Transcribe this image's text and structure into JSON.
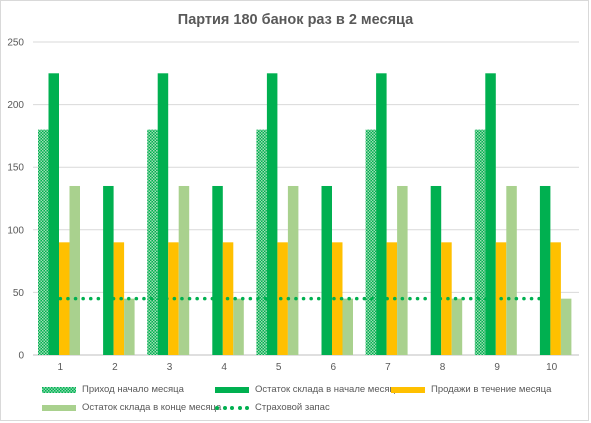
{
  "chart_data": {
    "type": "bar",
    "title": "Партия 180 банок раз в 2 месяца",
    "categories": [
      "1",
      "2",
      "3",
      "4",
      "5",
      "6",
      "7",
      "8",
      "9",
      "10"
    ],
    "yticks": [
      "0",
      "50",
      "100",
      "150",
      "200",
      "250"
    ],
    "ylim": [
      0,
      250
    ],
    "grid": true,
    "legend_position": "bottom",
    "series": [
      {
        "name": "Приход начало месяца",
        "kind": "bar",
        "pattern": "hatched",
        "color": "#00b050",
        "values": [
          180,
          0,
          180,
          0,
          180,
          0,
          180,
          0,
          180,
          0
        ]
      },
      {
        "name": "Остаток склада в начале месяца",
        "kind": "bar",
        "color": "#00b050",
        "values": [
          225,
          135,
          225,
          135,
          225,
          135,
          225,
          135,
          225,
          135
        ]
      },
      {
        "name": "Продажи в течение месяца",
        "kind": "bar",
        "color": "#ffc000",
        "values": [
          90,
          90,
          90,
          90,
          90,
          90,
          90,
          90,
          90,
          90
        ]
      },
      {
        "name": "Остаток склада в конце месяца",
        "kind": "bar",
        "color": "#a9d18e",
        "values": [
          135,
          45,
          135,
          45,
          135,
          45,
          135,
          45,
          135,
          45
        ]
      },
      {
        "name": "Страховой запас",
        "kind": "dotted-line",
        "color": "#00b050",
        "values": [
          45,
          45,
          45,
          45,
          45,
          45,
          45,
          45,
          45,
          45
        ]
      }
    ]
  }
}
